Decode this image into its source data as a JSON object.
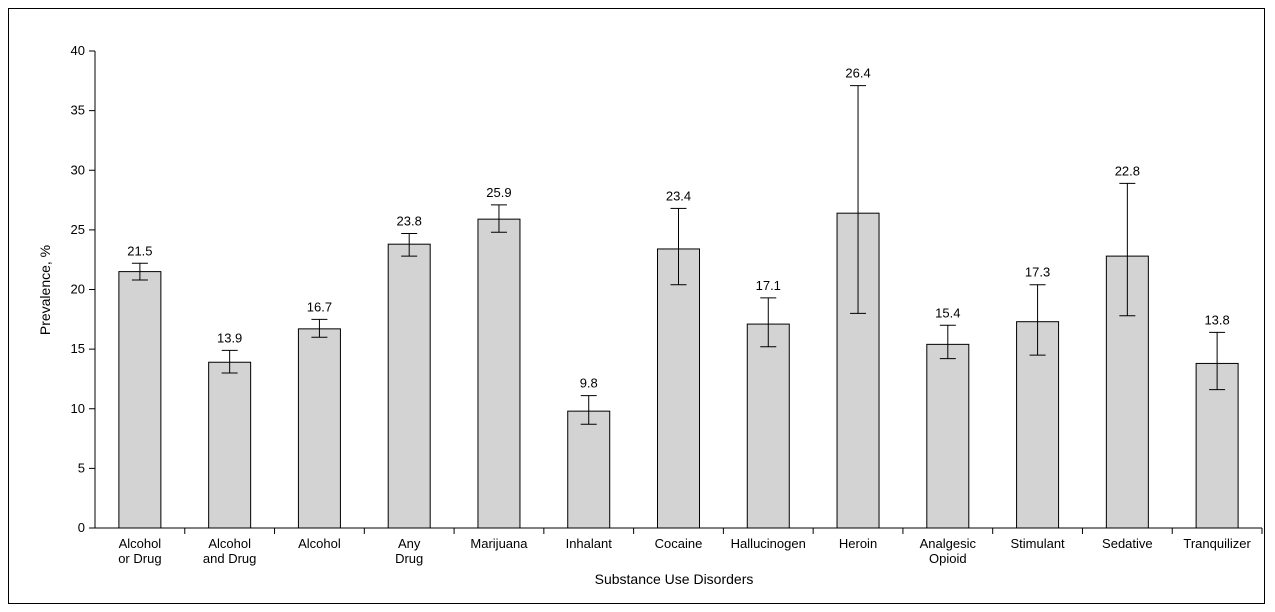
{
  "chart_data": {
    "type": "bar",
    "title": "",
    "xlabel": "Substance Use Disorders",
    "ylabel": "Prevalence, %",
    "ylim": [
      0,
      40
    ],
    "yticks": [
      0,
      5,
      10,
      15,
      20,
      25,
      30,
      35,
      40
    ],
    "grid": false,
    "bar_color": "#d3d3d3",
    "categories": [
      [
        "Alcohol",
        "or Drug"
      ],
      [
        "Alcohol",
        "and Drug"
      ],
      [
        "Alcohol"
      ],
      [
        "Any",
        "Drug"
      ],
      [
        "Marijuana"
      ],
      [
        "Inhalant"
      ],
      [
        "Cocaine"
      ],
      [
        "Hallucinogen"
      ],
      [
        "Heroin"
      ],
      [
        "Analgesic",
        "Opioid"
      ],
      [
        "Stimulant"
      ],
      [
        "Sedative"
      ],
      [
        "Tranquilizer"
      ]
    ],
    "values": [
      21.5,
      13.9,
      16.7,
      23.8,
      25.9,
      9.8,
      23.4,
      17.1,
      26.4,
      15.4,
      17.3,
      22.8,
      13.8
    ],
    "value_labels": [
      "21.5",
      "13.9",
      "16.7",
      "23.8",
      "25.9",
      "9.8",
      "23.4",
      "17.1",
      "26.4",
      "15.4",
      "17.3",
      "22.8",
      "13.8"
    ],
    "error_low": [
      20.8,
      13.0,
      16.0,
      22.8,
      24.8,
      8.7,
      20.4,
      15.2,
      18.0,
      14.2,
      14.5,
      17.8,
      11.6
    ],
    "error_high": [
      22.2,
      14.9,
      17.5,
      24.7,
      27.1,
      11.1,
      26.8,
      19.3,
      37.1,
      17.0,
      20.4,
      28.9,
      16.4
    ]
  }
}
